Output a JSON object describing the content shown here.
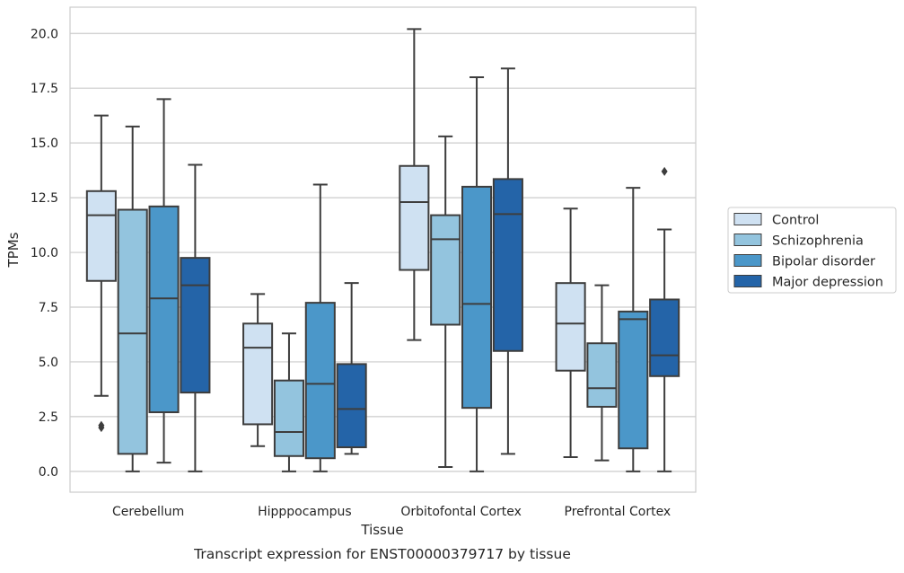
{
  "chart_data": {
    "type": "box",
    "title": "",
    "caption": "Transcript expression for ENST00000379717 by tissue",
    "xlabel": "Tissue",
    "ylabel": "TPMs",
    "ylim": [
      -0.95,
      21.2
    ],
    "yticks": [
      0.0,
      2.5,
      5.0,
      7.5,
      10.0,
      12.5,
      15.0,
      17.5,
      20.0
    ],
    "ytick_labels": [
      "0.0",
      "2.5",
      "5.0",
      "7.5",
      "10.0",
      "12.5",
      "15.0",
      "17.5",
      "20.0"
    ],
    "grid": "horizontal",
    "legend_position": "right",
    "categories": [
      "Cerebellum",
      "Hipppocampus",
      "Orbitofontal Cortex",
      "Prefrontal Cortex"
    ],
    "series": [
      {
        "name": "Control",
        "color": "#cfe1f2",
        "boxes": [
          {
            "whislo": 3.45,
            "q1": 8.7,
            "med": 11.7,
            "q3": 12.8,
            "whishi": 16.25,
            "fliers": [
              2.0,
              2.1
            ]
          },
          {
            "whislo": 1.15,
            "q1": 2.15,
            "med": 5.65,
            "q3": 6.75,
            "whishi": 8.1,
            "fliers": []
          },
          {
            "whislo": 6.0,
            "q1": 9.2,
            "med": 12.3,
            "q3": 13.95,
            "whishi": 20.2,
            "fliers": []
          },
          {
            "whislo": 0.65,
            "q1": 4.6,
            "med": 6.75,
            "q3": 8.6,
            "whishi": 12.0,
            "fliers": []
          }
        ]
      },
      {
        "name": "Schizophrenia",
        "color": "#93c4de",
        "boxes": [
          {
            "whislo": 0.0,
            "q1": 0.8,
            "med": 6.3,
            "q3": 11.95,
            "whishi": 15.75,
            "fliers": []
          },
          {
            "whislo": 0.0,
            "q1": 0.7,
            "med": 1.8,
            "q3": 4.15,
            "whishi": 6.3,
            "fliers": []
          },
          {
            "whislo": 0.2,
            "q1": 6.7,
            "med": 10.6,
            "q3": 11.7,
            "whishi": 15.3,
            "fliers": []
          },
          {
            "whislo": 0.5,
            "q1": 2.95,
            "med": 3.8,
            "q3": 5.85,
            "whishi": 8.5,
            "fliers": []
          }
        ]
      },
      {
        "name": "Bipolar disorder",
        "color": "#4b97c9",
        "boxes": [
          {
            "whislo": 0.4,
            "q1": 2.7,
            "med": 7.9,
            "q3": 12.1,
            "whishi": 17.0,
            "fliers": []
          },
          {
            "whislo": 0.0,
            "q1": 0.6,
            "med": 4.0,
            "q3": 7.7,
            "whishi": 13.1,
            "fliers": []
          },
          {
            "whislo": 0.0,
            "q1": 2.9,
            "med": 7.65,
            "q3": 13.0,
            "whishi": 18.0,
            "fliers": []
          },
          {
            "whislo": 0.0,
            "q1": 1.05,
            "med": 6.95,
            "q3": 7.3,
            "whishi": 12.95,
            "fliers": []
          }
        ]
      },
      {
        "name": "Major depression",
        "color": "#2464a8",
        "boxes": [
          {
            "whislo": 0.0,
            "q1": 3.6,
            "med": 8.5,
            "q3": 9.75,
            "whishi": 14.0,
            "fliers": []
          },
          {
            "whislo": 0.8,
            "q1": 1.1,
            "med": 2.85,
            "q3": 4.9,
            "whishi": 8.6,
            "fliers": []
          },
          {
            "whislo": 0.8,
            "q1": 5.5,
            "med": 11.75,
            "q3": 13.35,
            "whishi": 18.4,
            "fliers": []
          },
          {
            "whislo": 0.0,
            "q1": 4.35,
            "med": 5.3,
            "q3": 7.85,
            "whishi": 11.05,
            "fliers": [
              13.7
            ]
          }
        ]
      }
    ]
  }
}
